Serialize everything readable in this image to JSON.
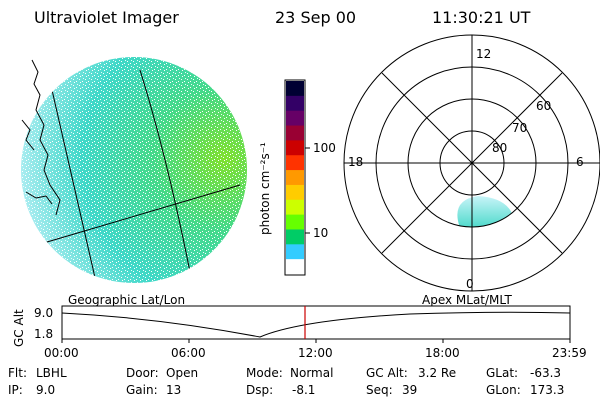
{
  "header": {
    "instrument": "Ultraviolet Imager",
    "date": "23 Sep 00",
    "time": "11:30:21 UT"
  },
  "panels": {
    "geo_label": "Geographic Lat/Lon",
    "apex_label": "Apex MLat/MLT"
  },
  "colorbar": {
    "label": "photon cm⁻²s⁻¹",
    "tick_100": "100",
    "tick_10": "10",
    "colors": [
      "#000033",
      "#330066",
      "#660066",
      "#990033",
      "#cc0000",
      "#ff3300",
      "#ff9900",
      "#ffcc00",
      "#ccff00",
      "#66ff00",
      "#00cc66",
      "#33ccff",
      "#ffffff"
    ]
  },
  "polar": {
    "mlt_12": "12",
    "mlt_18": "18",
    "mlt_6": "6",
    "mlt_0": "0",
    "lat_60": "60",
    "lat_70": "70",
    "lat_80": "80"
  },
  "timeline": {
    "ylabel": "GC Alt",
    "y_top": "9.0",
    "y_bottom": "1.8",
    "ticks": [
      "00:00",
      "06:00",
      "12:00",
      "18:00",
      "23:59"
    ]
  },
  "info": {
    "flt_label": "Flt:",
    "flt_value": "LBHL",
    "ip_label": "IP:",
    "ip_value": "9.0",
    "door_label": "Door:",
    "door_value": "Open",
    "gain_label": "Gain:",
    "gain_value": "13",
    "mode_label": "Mode:",
    "mode_value": "Normal",
    "dsp_label": "Dsp:",
    "dsp_value": "-8.1",
    "gcalt_label": "GC Alt:",
    "gcalt_value": "3.2 Re",
    "seq_label": "Seq:",
    "seq_value": "39",
    "glat_label": "GLat:",
    "glat_value": "-63.3",
    "glon_label": "GLon:",
    "glon_value": "173.3"
  }
}
